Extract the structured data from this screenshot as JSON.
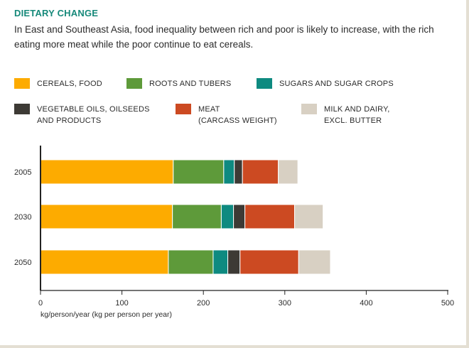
{
  "title": "DIETARY CHANGE",
  "subtitle": "In East and Southeast Asia, food inequality between rich and poor is likely to increase, with the rich eating more meat while the poor continue to eat cereals.",
  "chart_data": {
    "type": "bar",
    "orientation": "horizontal",
    "stacked": true,
    "categories": [
      "2005",
      "2030",
      "2050"
    ],
    "series": [
      {
        "name": "CEREALS, FOOD",
        "color": "#fdab00",
        "values": [
          163,
          162,
          157
        ]
      },
      {
        "name": "ROOTS AND TUBERS",
        "color": "#5e9a3a",
        "values": [
          62,
          60,
          55
        ]
      },
      {
        "name": "SUGARS AND SUGAR CROPS",
        "color": "#0e8a80",
        "values": [
          13,
          15,
          18
        ]
      },
      {
        "name": "VEGETABLE OILS, OILSEEDS\nAND PRODUCTS",
        "color": "#3d3a35",
        "values": [
          10,
          14,
          15
        ]
      },
      {
        "name": "MEAT\n(CARCASS WEIGHT)",
        "color": "#cc4a22",
        "values": [
          44,
          61,
          72
        ]
      },
      {
        "name": "MILK AND DAIRY,\nEXCL. BUTTER",
        "color": "#d8d0c3",
        "values": [
          24,
          35,
          39
        ]
      }
    ],
    "xlim": [
      0,
      500
    ],
    "xticks": [
      0,
      100,
      200,
      300,
      400,
      500
    ],
    "xlabel": "kg/person/year (kg per person per year)",
    "ylabel": ""
  }
}
